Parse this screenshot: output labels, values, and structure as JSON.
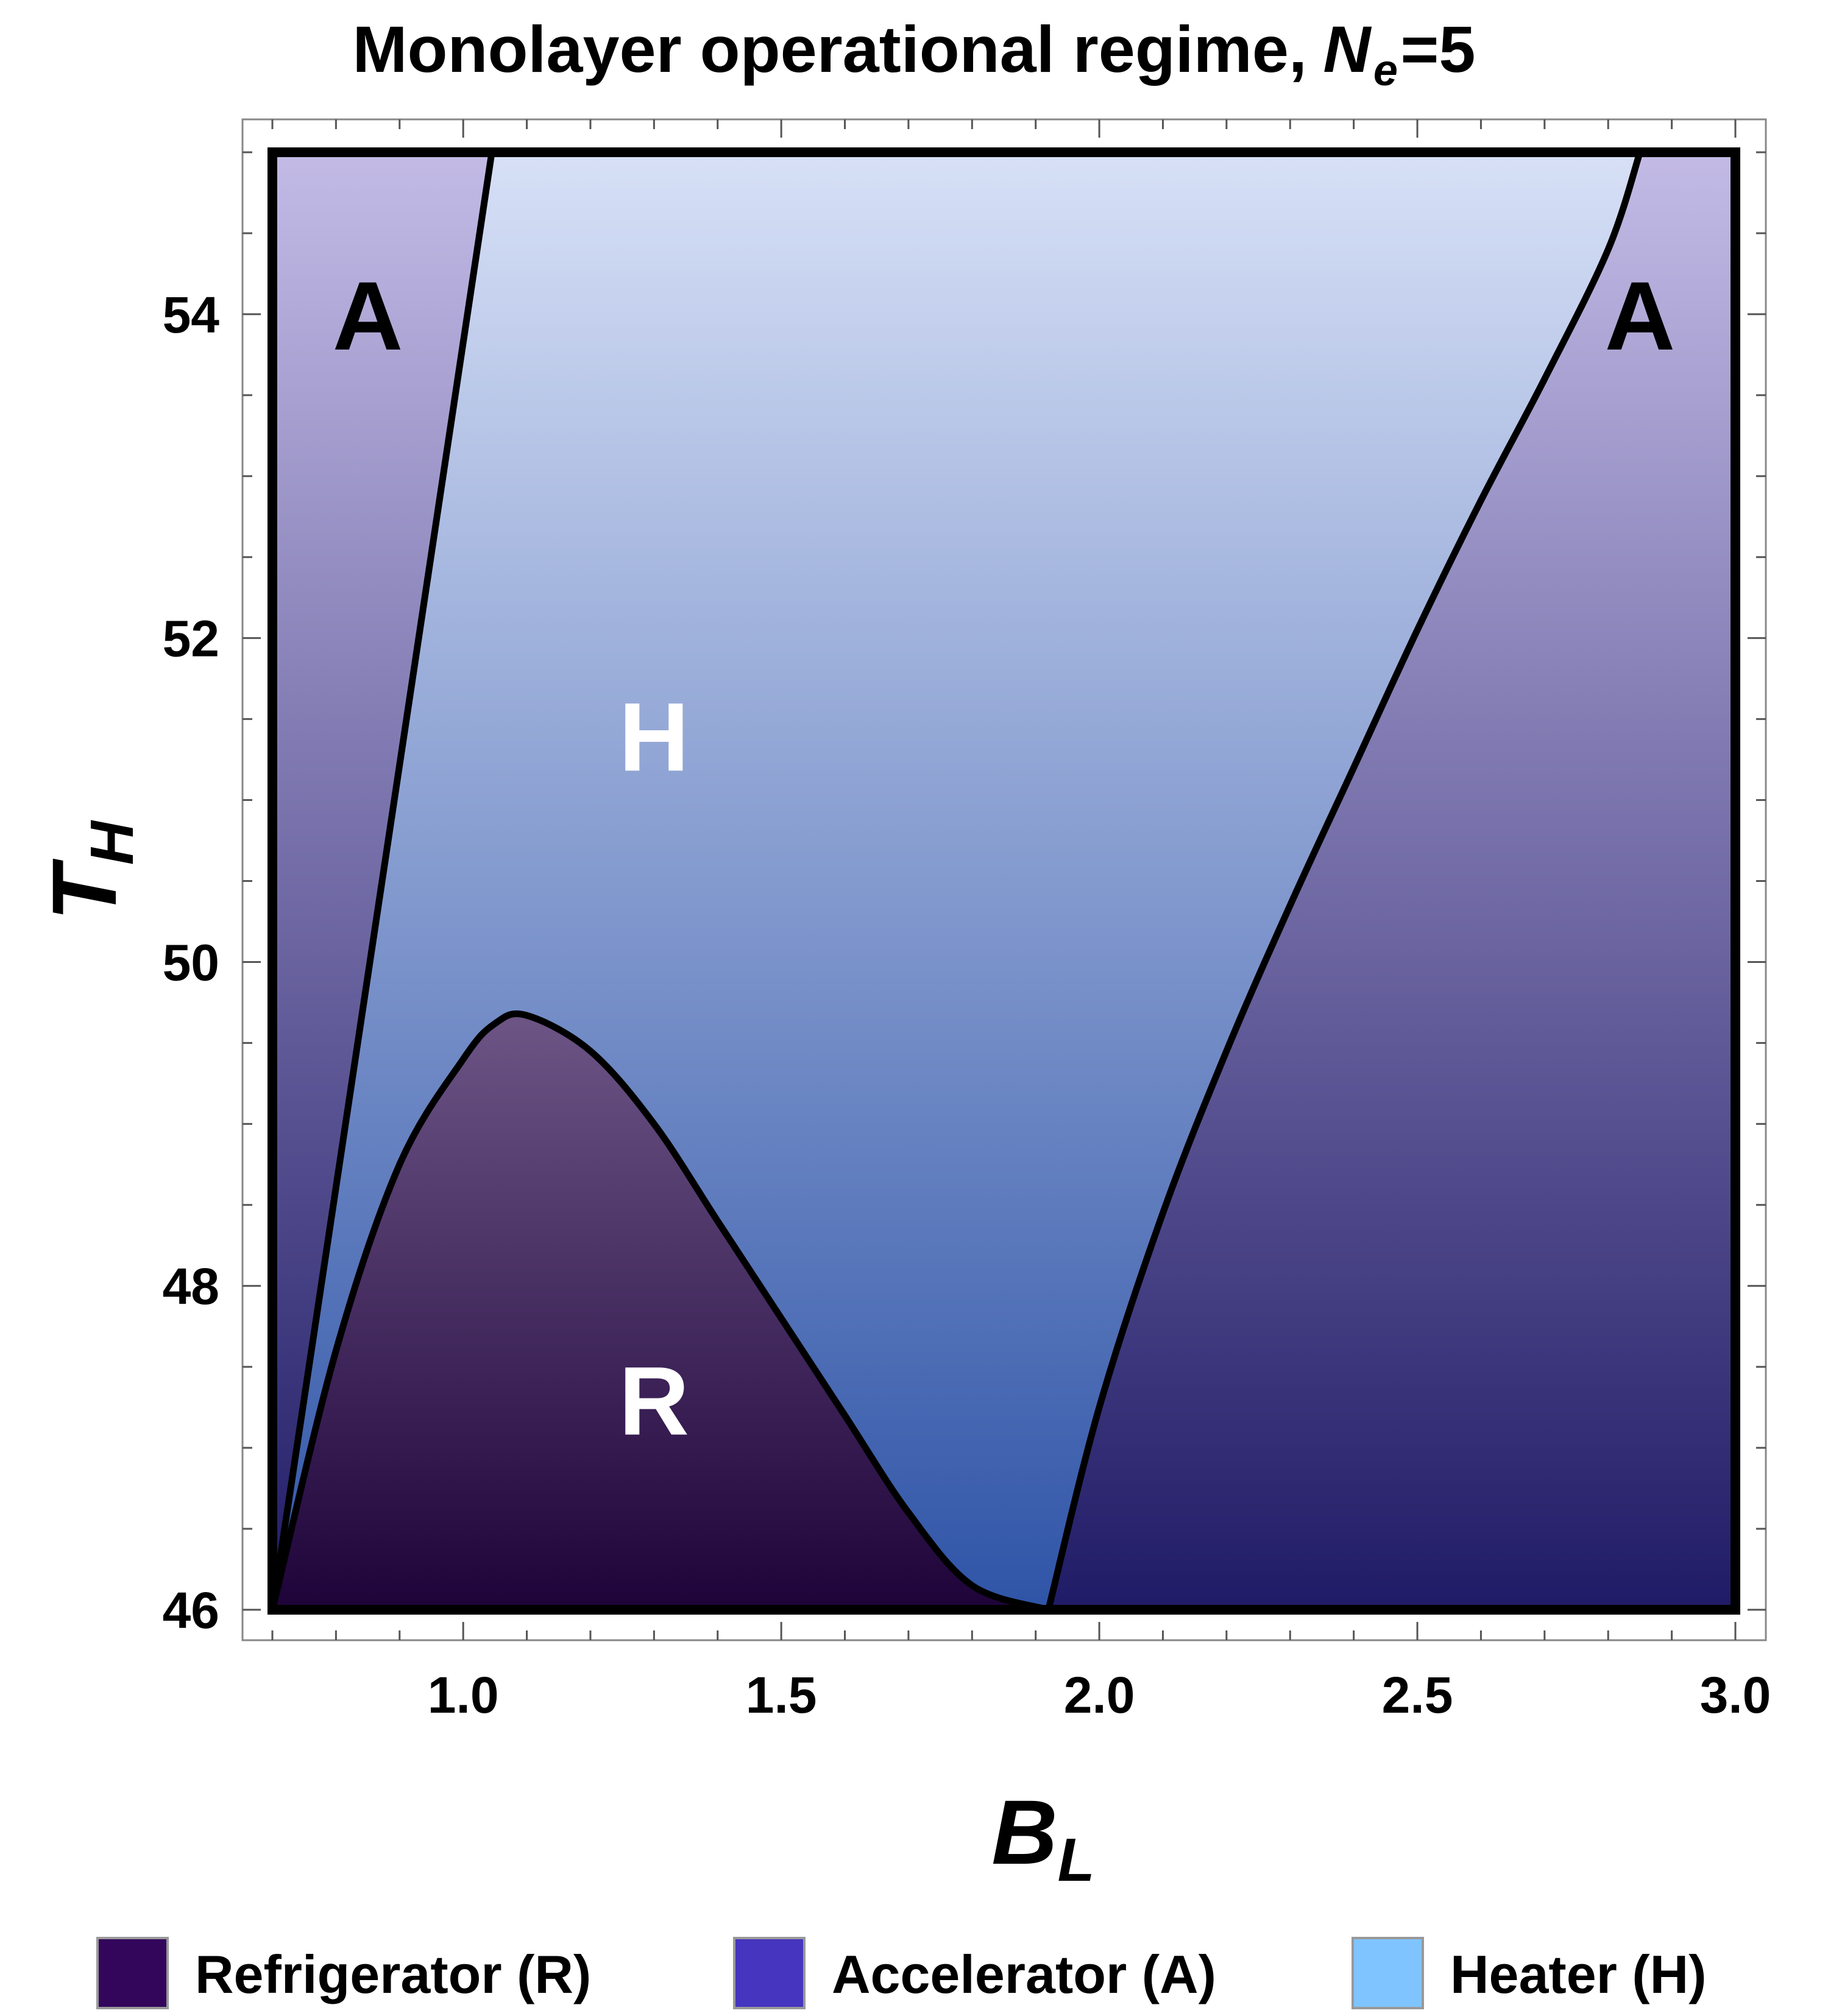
{
  "chart_data": {
    "type": "area",
    "title": "Monolayer operational regime,",
    "title_symbol": "N",
    "title_symbol_sub": "e",
    "title_suffix": "=5",
    "xlabel": "B",
    "xlabel_sub": "L",
    "ylabel": "T",
    "ylabel_sub": "H",
    "xlim": [
      0.7,
      3.0
    ],
    "ylim": [
      46,
      55
    ],
    "xticks": [
      1.0,
      1.5,
      2.0,
      2.5,
      3.0
    ],
    "xtick_labels": [
      "1.0",
      "1.5",
      "2.0",
      "2.5",
      "3.0"
    ],
    "yticks": [
      46,
      48,
      50,
      52,
      54
    ],
    "ytick_labels": [
      "46",
      "48",
      "50",
      "52",
      "54"
    ],
    "grid": false,
    "boundaries": [
      {
        "name": "left-boundary",
        "x": [
          0.7,
          1.045
        ],
        "y": [
          46.0,
          55.0
        ]
      },
      {
        "name": "dome-boundary",
        "x": [
          0.7,
          0.8,
          0.9,
          1.0,
          1.05,
          1.1,
          1.2,
          1.3,
          1.4,
          1.5,
          1.6,
          1.7,
          1.8,
          1.92
        ],
        "y": [
          46.0,
          47.6,
          48.75,
          49.4,
          49.62,
          49.67,
          49.45,
          49.0,
          48.4,
          47.8,
          47.2,
          46.6,
          46.15,
          46.0
        ]
      },
      {
        "name": "right-boundary",
        "x": [
          1.92,
          2.0,
          2.1,
          2.2,
          2.3,
          2.4,
          2.5,
          2.6,
          2.7,
          2.8,
          2.85
        ],
        "y": [
          46.0,
          47.25,
          48.45,
          49.45,
          50.35,
          51.2,
          52.05,
          52.85,
          53.6,
          54.4,
          55.0
        ]
      }
    ],
    "regions": [
      {
        "label": "A",
        "x": 0.85,
        "y": 54.0,
        "text_color": "#000000"
      },
      {
        "label": "H",
        "x": 1.3,
        "y": 51.4,
        "text_color": "#ffffff"
      },
      {
        "label": "R",
        "x": 1.3,
        "y": 47.3,
        "text_color": "#ffffff"
      },
      {
        "label": "A",
        "x": 2.85,
        "y": 54.0,
        "text_color": "#000000"
      }
    ],
    "legend": {
      "placement": "bottom",
      "entries": [
        {
          "name": "Refrigerator (R)",
          "color": "#33065c"
        },
        {
          "name": "Accelerator (A)",
          "color": "#4535bf"
        },
        {
          "name": "Heater (H)",
          "color": "#80c4ff"
        }
      ]
    },
    "colors": {
      "heater_top": "#d7e0f6",
      "heater_bottom": "#2f54a7",
      "accelerator_top": "#c3bbe6",
      "accelerator_bottom": "#201b66",
      "refrigerator_top": "#6d5586",
      "refrigerator_bottom": "#1e0339"
    }
  }
}
